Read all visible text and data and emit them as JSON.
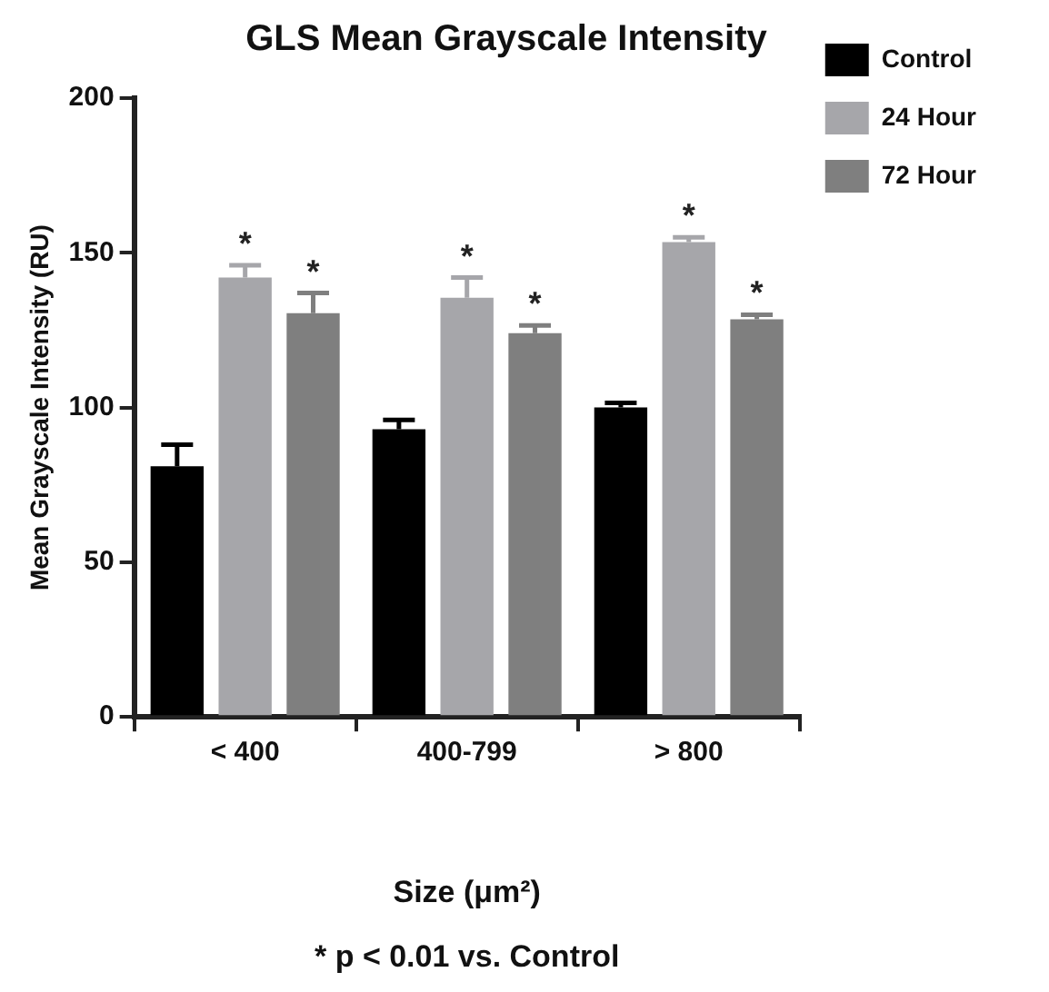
{
  "chart_data": {
    "type": "bar",
    "title": "GLS Mean Grayscale Intensity",
    "xlabel": "Size (μm²)",
    "ylabel": "Mean Grayscale Intensity (RU)",
    "categories": [
      "< 400",
      "400-799",
      "> 800"
    ],
    "series": [
      {
        "name": "Control",
        "color": "#000000",
        "values": [
          81,
          93,
          100
        ],
        "errors": [
          7,
          3,
          1.5
        ]
      },
      {
        "name": "24 Hour",
        "color": "#a6a6aa",
        "values": [
          142,
          135.5,
          153.5
        ],
        "errors": [
          4,
          6.5,
          1.5
        ],
        "value_labels": [
          "*",
          "*",
          "*"
        ]
      },
      {
        "name": "72 Hour",
        "color": "#7f7f7f",
        "values": [
          130.5,
          124,
          128.5
        ],
        "errors": [
          6.5,
          2.5,
          1.5
        ],
        "value_labels": [
          "*",
          "*",
          "*"
        ]
      }
    ],
    "ylim": [
      0,
      200
    ],
    "yticks": [
      0,
      50,
      100,
      150,
      200
    ],
    "grid": false,
    "legend": "right",
    "annotations": [
      "* p < 0.01 vs. Control"
    ]
  }
}
